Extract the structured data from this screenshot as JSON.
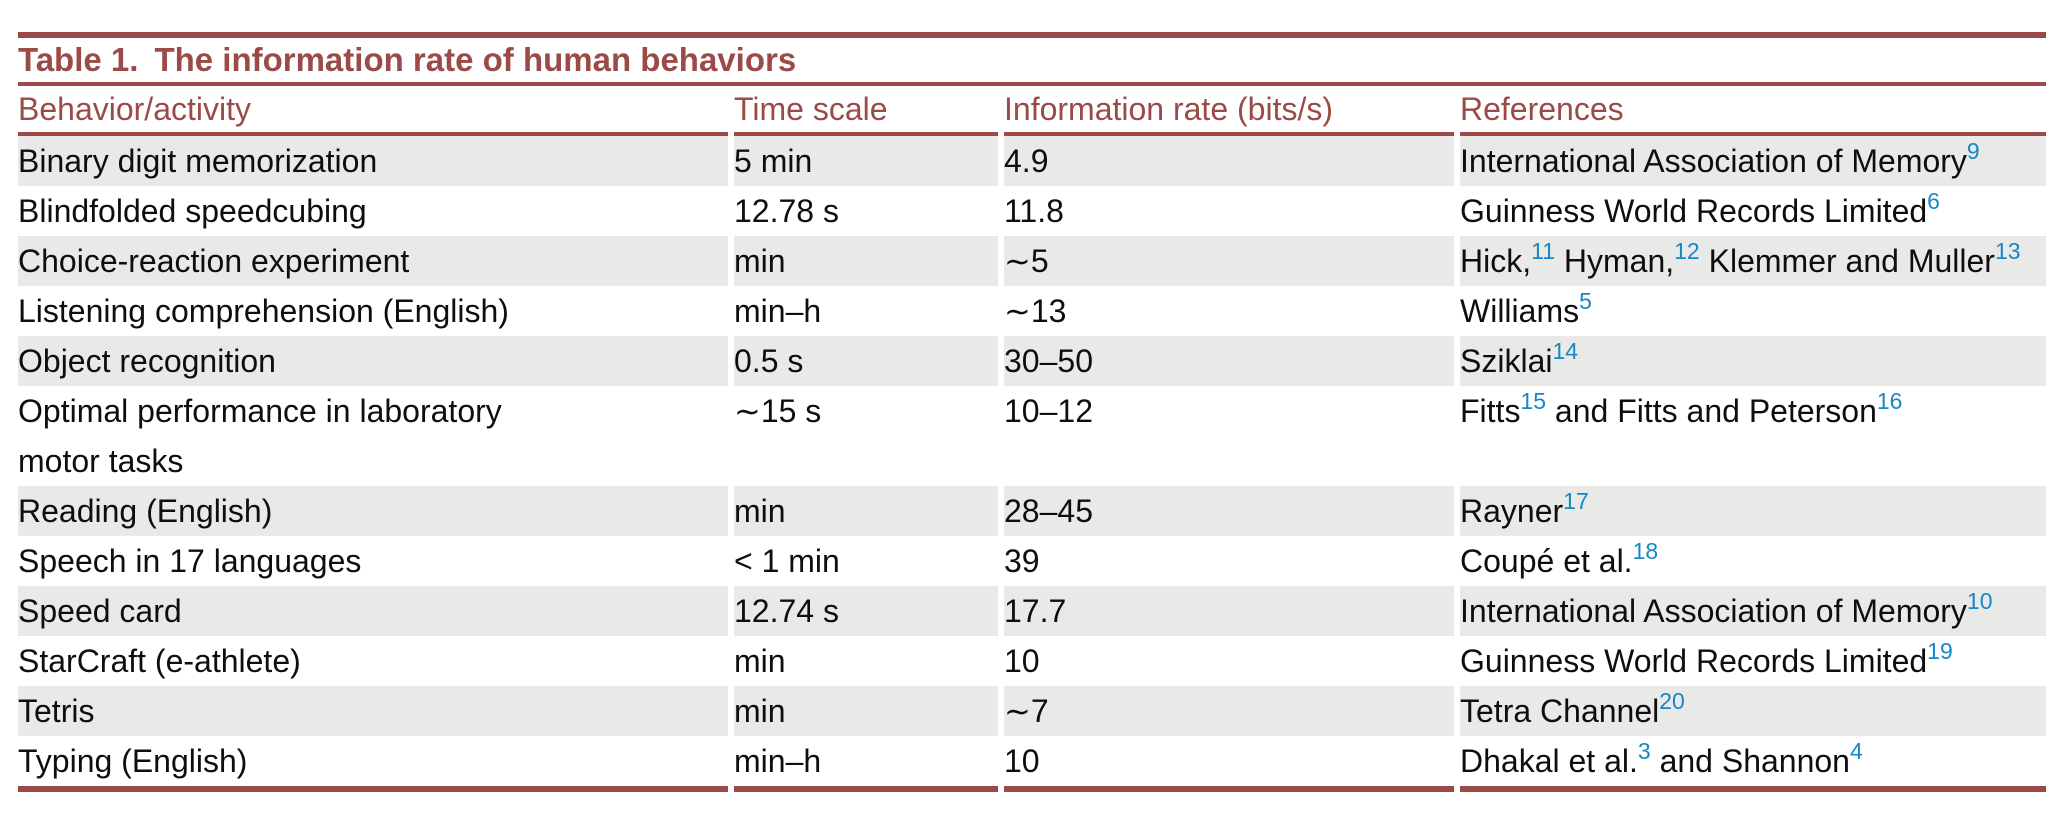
{
  "colors": {
    "accent_maroon": "#9a4b48",
    "stripe_gray": "#e9e9e7",
    "citation_blue": "#1787c5",
    "body_text": "#0e0e0e"
  },
  "table": {
    "title": {
      "number": "Table 1.",
      "caption": "The information rate of human behaviors"
    },
    "columns": [
      "Behavior/activity",
      "Time scale",
      "Information rate (bits/s)",
      "References"
    ],
    "rows": [
      {
        "behavior": "Binary digit memorization",
        "time_scale": "5 min",
        "info_rate": "4.9",
        "references": [
          {
            "t": "International Association of Memory"
          },
          {
            "sup": "9"
          }
        ]
      },
      {
        "behavior": "Blindfolded speedcubing",
        "time_scale": "12.78 s",
        "info_rate": "11.8",
        "references": [
          {
            "t": "Guinness World Records Limited"
          },
          {
            "sup": "6"
          }
        ]
      },
      {
        "behavior": "Choice-reaction experiment",
        "time_scale": "min",
        "info_rate": "∼5",
        "references": [
          {
            "t": "Hick,"
          },
          {
            "sup": "11"
          },
          {
            "t": " Hyman,"
          },
          {
            "sup": "12"
          },
          {
            "t": " Klemmer and Muller"
          },
          {
            "sup": "13"
          }
        ]
      },
      {
        "behavior": "Listening comprehension (English)",
        "time_scale": "min–h",
        "info_rate": "∼13",
        "references": [
          {
            "t": "Williams"
          },
          {
            "sup": "5"
          }
        ]
      },
      {
        "behavior": "Object recognition",
        "time_scale": "0.5 s",
        "info_rate": "30–50",
        "references": [
          {
            "t": "Sziklai"
          },
          {
            "sup": "14"
          }
        ]
      },
      {
        "behavior": "Optimal performance in laboratory\nmotor tasks",
        "time_scale": "∼15 s",
        "info_rate": "10–12",
        "references": [
          {
            "t": "Fitts"
          },
          {
            "sup": "15"
          },
          {
            "t": " and Fitts and Peterson"
          },
          {
            "sup": "16"
          }
        ]
      },
      {
        "behavior": "Reading (English)",
        "time_scale": "min",
        "info_rate": "28–45",
        "references": [
          {
            "t": "Rayner"
          },
          {
            "sup": "17"
          }
        ]
      },
      {
        "behavior": "Speech in 17 languages",
        "time_scale": "< 1 min",
        "info_rate": "39",
        "references": [
          {
            "t": "Coupé et al."
          },
          {
            "sup": "18"
          }
        ]
      },
      {
        "behavior": "Speed card",
        "time_scale": "12.74 s",
        "info_rate": "17.7",
        "references": [
          {
            "t": "International Association of Memory"
          },
          {
            "sup": "10"
          }
        ]
      },
      {
        "behavior": "StarCraft (e-athlete)",
        "time_scale": "min",
        "info_rate": "10",
        "references": [
          {
            "t": "Guinness World Records Limited"
          },
          {
            "sup": "19"
          }
        ]
      },
      {
        "behavior": "Tetris",
        "time_scale": "min",
        "info_rate": "∼7",
        "references": [
          {
            "t": "Tetra Channel"
          },
          {
            "sup": "20"
          }
        ]
      },
      {
        "behavior": "Typing (English)",
        "time_scale": "min–h",
        "info_rate": "10",
        "references": [
          {
            "t": "Dhakal et al."
          },
          {
            "sup": "3"
          },
          {
            "t": " and Shannon"
          },
          {
            "sup": "4"
          }
        ]
      }
    ]
  }
}
